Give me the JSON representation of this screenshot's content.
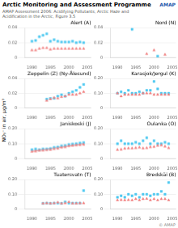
{
  "title": "Arctic Monitoring and Assessment Programme",
  "subtitle": "AMAP Assessment 2006: Acidifying Pollutants, Arctic Haze and Acidification in the Arctic, Figure 3.5",
  "ylabel": "NO₃⁻ in air, µg/m³",
  "annotations": [
    "AMAP",
    "© AMAP"
  ],
  "chart_data": [
    {
      "type": "scatter",
      "title": "Alert (A)",
      "xlim": [
        1988,
        2006
      ],
      "xticks": [
        1990,
        1995,
        2000,
        2005
      ],
      "ylim": [
        0,
        0.04
      ],
      "yticks": [
        0,
        0.02,
        0.04
      ],
      "grid": "y",
      "series": [
        {
          "color": "#F08080",
          "marker": "triangle",
          "x": [
            1990,
            1991,
            1992,
            1993,
            1994,
            1995,
            1996,
            1997,
            1998,
            1999,
            2000,
            2001,
            2002,
            2003,
            2004
          ],
          "values": [
            0.01,
            0.01,
            0.012,
            0.013,
            0.013,
            0.011,
            0.012,
            0.012,
            0.012,
            0.012,
            0.012,
            0.012,
            0.012,
            0.012,
            0.012
          ]
        },
        {
          "color": "#4DC8F0",
          "marker": "square",
          "x": [
            1990,
            1991,
            1992,
            1993,
            1994,
            1995,
            1996,
            1997,
            1998,
            1999,
            2000,
            2001,
            2002,
            2003,
            2004
          ],
          "values": [
            0.022,
            0.023,
            0.028,
            0.03,
            0.032,
            0.022,
            0.024,
            0.022,
            0.021,
            0.021,
            0.021,
            0.022,
            0.02,
            0.021,
            0.02
          ]
        }
      ]
    },
    {
      "type": "scatter",
      "title": "Nord (N)",
      "xlim": [
        1988,
        2006
      ],
      "xticks": [
        1990,
        1995,
        2000,
        2005
      ],
      "ylim": [
        0,
        0.04
      ],
      "yticks": [
        0,
        0.02,
        0.04
      ],
      "grid": "y",
      "series": [
        {
          "color": "#F08080",
          "marker": "triangle",
          "x": [
            1998,
            2000,
            2003
          ],
          "values": [
            0.005,
            0.01,
            0.004
          ]
        },
        {
          "color": "#4DC8F0",
          "marker": "square",
          "x": [
            1994,
            2001
          ],
          "values": [
            0.038,
            0.002
          ]
        }
      ]
    },
    {
      "type": "scatter",
      "title": "Zeppelin (Z) (Ny-Ålesund)",
      "xlim": [
        1988,
        2006
      ],
      "xticks": [
        1990,
        1995,
        2000,
        2005
      ],
      "ylim": [
        0,
        0.04
      ],
      "yticks": [
        0,
        0.02,
        0.04
      ],
      "grid": "y",
      "series": [
        {
          "color": "#F08080",
          "marker": "triangle",
          "x": [
            1994,
            1995,
            1996,
            1997,
            1998,
            1999,
            2000,
            2001,
            2002,
            2003,
            2004
          ],
          "values": [
            0.01,
            0.012,
            0.014,
            0.013,
            0.015,
            0.016,
            0.018,
            0.018,
            0.018,
            0.02,
            0.022
          ]
        },
        {
          "color": "#4DC8F0",
          "marker": "square",
          "x": [
            1994,
            1995,
            1996,
            1997,
            1998,
            1999,
            2000,
            2001,
            2002,
            2003,
            2004
          ],
          "values": [
            0.012,
            0.013,
            0.013,
            0.016,
            0.018,
            0.016,
            0.02,
            0.022,
            0.024,
            0.028,
            0.032
          ]
        }
      ]
    },
    {
      "type": "scatter",
      "title": "Karasjok/Jergul (K)",
      "xlim": [
        1988,
        2006
      ],
      "xticks": [
        1990,
        1995,
        2000,
        2005
      ],
      "ylim": [
        0,
        0.2
      ],
      "yticks": [
        0,
        {
          "value": 0.1,
          "label": "0.10"
        },
        {
          "value": 0.2,
          "label": "0.20"
        }
      ],
      "grid": "y",
      "series": [
        {
          "color": "#F08080",
          "marker": "triangle",
          "x": [
            1990,
            1991,
            1992,
            1993,
            1994,
            1995,
            1996,
            1997,
            1998,
            1999,
            2000,
            2001,
            2002,
            2003,
            2004
          ],
          "values": [
            0.1,
            0.08,
            0.09,
            0.09,
            0.09,
            0.09,
            0.09,
            0.1,
            0.1,
            0.1,
            0.09,
            0.09,
            0.09,
            0.09,
            0.09
          ]
        },
        {
          "color": "#4DC8F0",
          "marker": "square",
          "x": [
            1990,
            1991,
            1992,
            1993,
            1994,
            1995,
            1996,
            1997,
            1998,
            1999,
            2000,
            2001,
            2002,
            2003,
            2004
          ],
          "values": [
            0.1,
            0.11,
            0.1,
            0.12,
            0.1,
            0.1,
            0.11,
            0.1,
            0.12,
            0.12,
            0.18,
            0.13,
            0.1,
            0.1,
            0.1
          ]
        }
      ]
    },
    {
      "type": "scatter",
      "title": "Janiskoski (J)",
      "xlim": [
        1988,
        2006
      ],
      "xticks": [
        1990,
        1995,
        2000,
        2005
      ],
      "ylim": [
        0,
        0.2
      ],
      "yticks": [
        0,
        {
          "value": 0.1,
          "label": "0.10"
        },
        {
          "value": 0.2,
          "label": "0.20"
        }
      ],
      "grid": "y",
      "series": [
        {
          "color": "#F08080",
          "marker": "triangle",
          "x": [
            1990,
            1991,
            1992,
            1993,
            1994,
            1995,
            1996,
            1997,
            1998,
            1999,
            2000,
            2001,
            2002,
            2003,
            2004
          ],
          "values": [
            0.048,
            0.05,
            0.055,
            0.056,
            0.058,
            0.06,
            0.065,
            0.068,
            0.075,
            0.078,
            0.085,
            0.088,
            0.09,
            0.092,
            0.095
          ]
        },
        {
          "color": "#4DC8F0",
          "marker": "square",
          "x": [
            1990,
            1991,
            1992,
            1993,
            1994,
            1995,
            1996,
            1997,
            1998,
            1999,
            2000,
            2001,
            2002,
            2003,
            2004
          ],
          "values": [
            0.06,
            0.065,
            0.06,
            0.065,
            0.065,
            0.068,
            0.075,
            0.078,
            0.085,
            0.088,
            0.095,
            0.098,
            0.1,
            0.105,
            0.108
          ]
        },
        {
          "type": "line",
          "color": "#F08080",
          "x": [
            1990,
            2004
          ],
          "values": [
            0.05,
            0.1
          ]
        }
      ]
    },
    {
      "type": "scatter",
      "title": "Oulanka (O)",
      "xlim": [
        1988,
        2006
      ],
      "xticks": [
        1990,
        1995,
        2000,
        2005
      ],
      "ylim": [
        0,
        0.2
      ],
      "yticks": [
        0,
        {
          "value": 0.1,
          "label": "0.10"
        },
        {
          "value": 0.2,
          "label": "0.20"
        }
      ],
      "grid": "y",
      "series": [
        {
          "color": "#F08080",
          "marker": "triangle",
          "x": [
            1990,
            1991,
            1992,
            1993,
            1994,
            1995,
            1996,
            1997,
            1998,
            1999,
            2000,
            2001,
            2002,
            2003,
            2004
          ],
          "values": [
            0.06,
            0.062,
            0.068,
            0.07,
            0.07,
            0.072,
            0.075,
            0.07,
            0.072,
            0.078,
            0.08,
            0.088,
            0.09,
            0.082,
            0.072
          ]
        },
        {
          "color": "#4DC8F0",
          "marker": "square",
          "x": [
            1990,
            1991,
            1992,
            1993,
            1994,
            1995,
            1996,
            1997,
            1998,
            1999,
            2000,
            2001,
            2002,
            2003,
            2004
          ],
          "values": [
            0.1,
            0.12,
            0.1,
            0.1,
            0.1,
            0.11,
            0.1,
            0.12,
            0.14,
            0.1,
            0.12,
            0.1,
            0.1,
            0.11,
            0.1
          ]
        }
      ]
    },
    {
      "type": "scatter",
      "title": "Tuatersvatn (T)",
      "xlim": [
        1988,
        2006
      ],
      "xticks": [
        1990,
        1995,
        2000,
        2005
      ],
      "ylim": [
        0,
        0.2
      ],
      "yticks": [
        0,
        {
          "value": 0.1,
          "label": "0.10"
        },
        {
          "value": 0.2,
          "label": "0.20"
        }
      ],
      "grid": "y",
      "series": [
        {
          "color": "#F08080",
          "marker": "triangle",
          "x": [
            1993,
            1994,
            1995,
            1996,
            1997,
            1998,
            1999,
            2000,
            2001,
            2002,
            2003,
            2004
          ],
          "values": [
            0.038,
            0.04,
            0.038,
            0.04,
            0.045,
            0.038,
            0.04,
            0.048,
            0.038,
            0.038,
            0.04,
            0.04
          ]
        },
        {
          "color": "#4DC8F0",
          "marker": "square",
          "x": [
            1993,
            1994,
            1995,
            1996,
            1997,
            1998,
            1999,
            2000,
            2001,
            2002,
            2003,
            2004
          ],
          "values": [
            0.038,
            0.04,
            0.038,
            0.04,
            0.04,
            0.038,
            0.048,
            0.04,
            0.04,
            0.04,
            0.04,
            0.125
          ]
        }
      ]
    },
    {
      "type": "scatter",
      "title": "Bredskäi (B)",
      "xlim": [
        1988,
        2006
      ],
      "xticks": [
        1990,
        1995,
        2000,
        2005
      ],
      "ylim": [
        0,
        0.2
      ],
      "yticks": [
        0,
        {
          "value": 0.1,
          "label": "0.10"
        },
        {
          "value": 0.2,
          "label": "0.20"
        }
      ],
      "grid": "y",
      "series": [
        {
          "color": "#F08080",
          "marker": "triangle",
          "x": [
            1990,
            1991,
            1992,
            1993,
            1994,
            1995,
            1996,
            1997,
            1998,
            1999,
            2000,
            2001,
            2002,
            2003,
            2004
          ],
          "values": [
            0.06,
            0.062,
            0.06,
            0.062,
            0.06,
            0.068,
            0.06,
            0.068,
            0.07,
            0.06,
            0.068,
            0.06,
            0.068,
            0.068,
            0.06
          ]
        },
        {
          "color": "#4DC8F0",
          "marker": "square",
          "x": [
            1990,
            1991,
            1992,
            1993,
            1994,
            1995,
            1996,
            1997,
            1998,
            1999,
            2000,
            2001,
            2002,
            2003,
            2004
          ],
          "values": [
            0.08,
            0.09,
            0.08,
            0.1,
            0.09,
            0.1,
            0.08,
            0.1,
            0.1,
            0.09,
            0.1,
            0.1,
            0.12,
            0.1,
            0.18
          ]
        }
      ]
    }
  ]
}
